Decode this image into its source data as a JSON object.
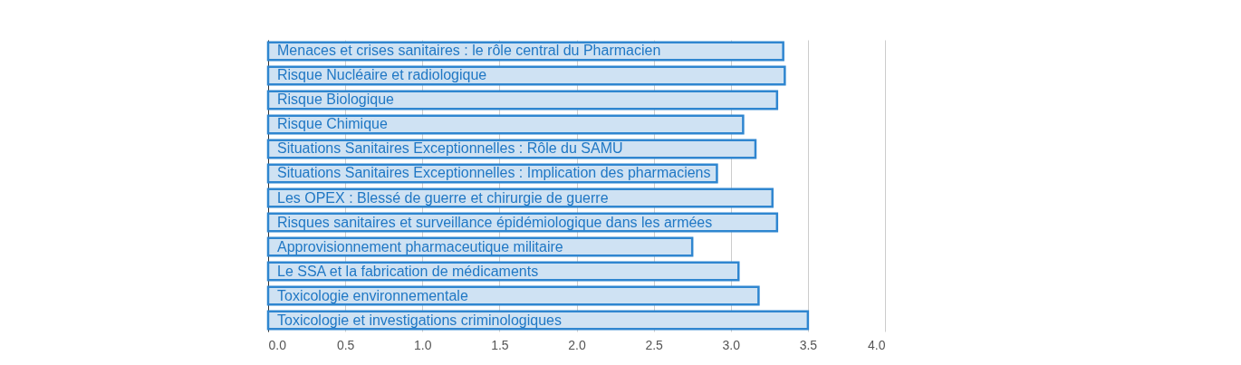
{
  "chart_data": {
    "type": "bar",
    "orientation": "horizontal",
    "categories": [
      "Menaces et crises sanitaires : le rôle central du Pharmacien",
      "Risque Nucléaire et radiologique",
      "Risque Biologique",
      "Risque Chimique",
      "Situations Sanitaires Exceptionnelles : Rôle du SAMU",
      "Situations Sanitaires Exceptionnelles : Implication des pharmaciens",
      "Les OPEX : Blessé de guerre et chirurgie de guerre",
      "Risques sanitaires et surveillance épidémiologique dans les armées",
      "Approvisionnement pharmaceutique militaire",
      "Le SSA et la fabrication de médicaments",
      "Toxicologie environnementale",
      "Toxicologie et investigations criminologiques"
    ],
    "values": [
      3.34,
      3.35,
      3.3,
      3.08,
      3.16,
      2.91,
      3.27,
      3.3,
      2.75,
      3.05,
      3.18,
      3.5
    ],
    "color": "#cfe2f3",
    "xlim": [
      0,
      4
    ],
    "xticks": [
      {
        "value": 0,
        "label": "0.0"
      },
      0.5,
      {
        "value": 1,
        "label": "1.0"
      },
      1.5,
      {
        "value": 2,
        "label": "2.0"
      },
      2.5,
      {
        "value": 3,
        "label": "3.0"
      },
      3.5,
      {
        "value": 4,
        "label": "4.0"
      }
    ],
    "grid": "x"
  }
}
